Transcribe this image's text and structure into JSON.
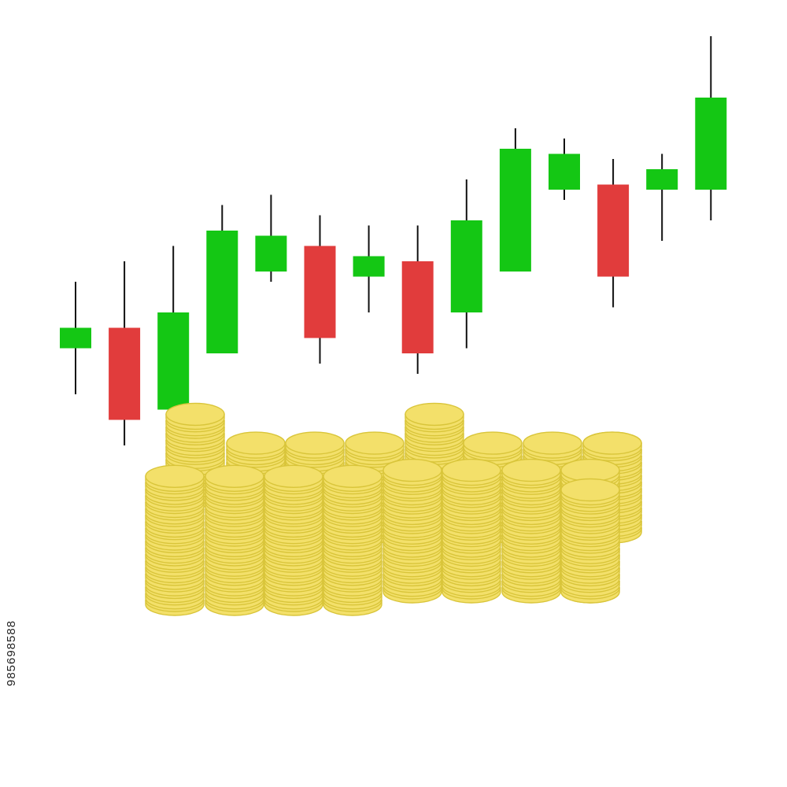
{
  "colors": {
    "up": "#14c714",
    "down": "#e13c3c",
    "wick": "#111111",
    "coin_fill": "#f3e06a",
    "coin_edge": "#d9c53a",
    "background": "#ffffff"
  },
  "watermark": {
    "stock_id": "985698588"
  },
  "chart_data": {
    "type": "candlestick",
    "title": "",
    "xlabel": "",
    "ylabel": "",
    "axes_shown": false,
    "grid": false,
    "ylim": [
      0,
      100
    ],
    "candles": [
      {
        "open": 55,
        "close": 59,
        "high": 68,
        "low": 46
      },
      {
        "open": 59,
        "close": 41,
        "high": 72,
        "low": 36
      },
      {
        "open": 43,
        "close": 62,
        "high": 75,
        "low": 43
      },
      {
        "open": 54,
        "close": 78,
        "high": 83,
        "low": 54
      },
      {
        "open": 70,
        "close": 77,
        "high": 85,
        "low": 68
      },
      {
        "open": 75,
        "close": 57,
        "high": 81,
        "low": 52
      },
      {
        "open": 69,
        "close": 73,
        "high": 79,
        "low": 62
      },
      {
        "open": 72,
        "close": 54,
        "high": 79,
        "low": 50
      },
      {
        "open": 62,
        "close": 80,
        "high": 88,
        "low": 55
      },
      {
        "open": 70,
        "close": 94,
        "high": 98,
        "low": 70
      },
      {
        "open": 86,
        "close": 93,
        "high": 96,
        "low": 84
      },
      {
        "open": 87,
        "close": 69,
        "high": 92,
        "low": 63
      },
      {
        "open": 86,
        "close": 90,
        "high": 93,
        "low": 76
      },
      {
        "open": 86,
        "close": 104,
        "high": 116,
        "low": 80
      }
    ]
  },
  "coin_stacks": [
    {
      "row": "back",
      "count": 14
    },
    {
      "row": "back",
      "count": 14
    },
    {
      "row": "back",
      "count": 14
    },
    {
      "row": "back",
      "count": 14
    },
    {
      "row": "back",
      "count": 14
    },
    {
      "row": "back",
      "count": 14
    },
    {
      "row": "back",
      "count": 14
    },
    {
      "row": "mid",
      "count": 13
    },
    {
      "row": "mid",
      "count": 13
    },
    {
      "row": "front",
      "count": 20
    },
    {
      "row": "front",
      "count": 20
    },
    {
      "row": "front",
      "count": 20
    },
    {
      "row": "front",
      "count": 20
    },
    {
      "row": "front",
      "count": 19
    },
    {
      "row": "front",
      "count": 19
    },
    {
      "row": "front",
      "count": 19
    },
    {
      "row": "front",
      "count": 19
    },
    {
      "row": "front",
      "count": 16
    }
  ]
}
